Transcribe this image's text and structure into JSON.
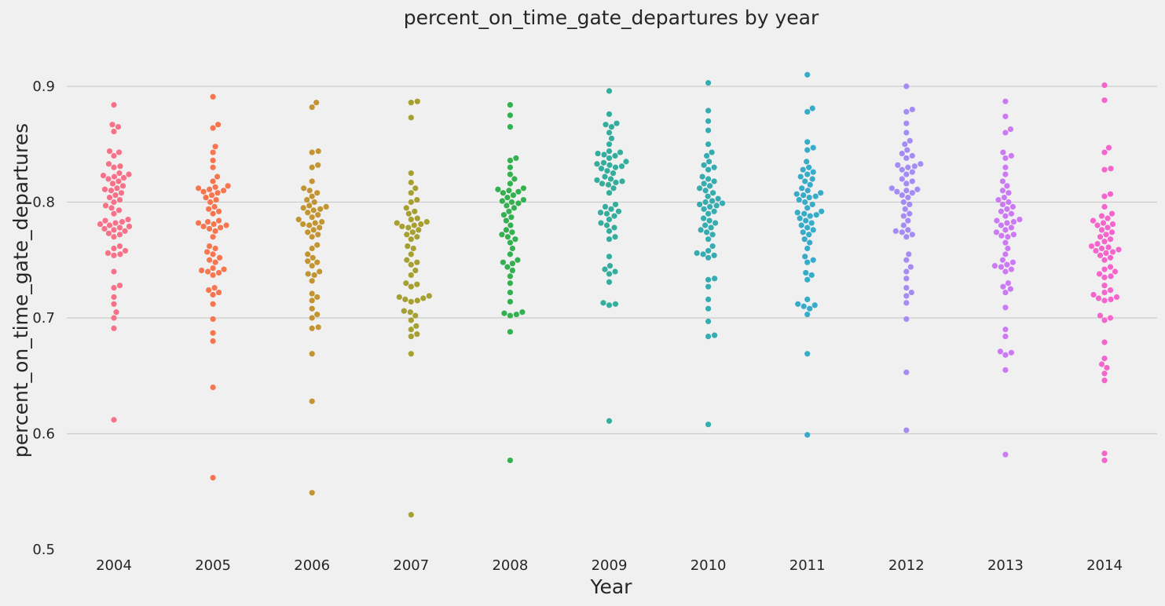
{
  "chart_data": {
    "type": "scatter",
    "subtype": "swarm",
    "title": "percent_on_time_gate_departures by year",
    "xlabel": "Year",
    "ylabel": "percent_on_time_gate_departures",
    "ylim": [
      0.5,
      0.94
    ],
    "yticks": [
      0.5,
      0.6,
      0.7,
      0.8,
      0.9
    ],
    "ytick_labels": [
      "0.5",
      "0.6",
      "0.7",
      "0.8",
      "0.9"
    ],
    "grid": true,
    "categories": [
      "2004",
      "2005",
      "2006",
      "2007",
      "2008",
      "2009",
      "2010",
      "2011",
      "2012",
      "2013",
      "2014"
    ],
    "colors": [
      "#f77189",
      "#f7754f",
      "#c39532",
      "#a6a031",
      "#33b04f",
      "#35ad9c",
      "#36abb0",
      "#37abc8",
      "#a48cf4",
      "#cc7af4",
      "#f565cc"
    ],
    "series": [
      {
        "category": "2004",
        "values": [
          0.612,
          0.691,
          0.7,
          0.705,
          0.712,
          0.718,
          0.726,
          0.728,
          0.74,
          0.754,
          0.755,
          0.756,
          0.758,
          0.76,
          0.762,
          0.77,
          0.772,
          0.773,
          0.775,
          0.776,
          0.777,
          0.778,
          0.779,
          0.78,
          0.781,
          0.782,
          0.783,
          0.784,
          0.785,
          0.79,
          0.793,
          0.795,
          0.797,
          0.8,
          0.802,
          0.804,
          0.806,
          0.808,
          0.81,
          0.811,
          0.812,
          0.814,
          0.816,
          0.818,
          0.82,
          0.821,
          0.822,
          0.823,
          0.824,
          0.825,
          0.83,
          0.831,
          0.833,
          0.84,
          0.843,
          0.844,
          0.861,
          0.865,
          0.867,
          0.884
        ]
      },
      {
        "category": "2005",
        "values": [
          0.562,
          0.64,
          0.68,
          0.687,
          0.699,
          0.712,
          0.72,
          0.722,
          0.724,
          0.726,
          0.737,
          0.739,
          0.74,
          0.741,
          0.742,
          0.743,
          0.748,
          0.75,
          0.752,
          0.755,
          0.757,
          0.76,
          0.762,
          0.77,
          0.775,
          0.777,
          0.778,
          0.779,
          0.78,
          0.781,
          0.782,
          0.783,
          0.784,
          0.79,
          0.792,
          0.794,
          0.796,
          0.8,
          0.802,
          0.804,
          0.806,
          0.808,
          0.809,
          0.81,
          0.811,
          0.812,
          0.813,
          0.814,
          0.818,
          0.822,
          0.83,
          0.836,
          0.843,
          0.848,
          0.864,
          0.867,
          0.891
        ]
      },
      {
        "category": "2006",
        "values": [
          0.549,
          0.628,
          0.669,
          0.691,
          0.692,
          0.7,
          0.703,
          0.708,
          0.715,
          0.718,
          0.721,
          0.732,
          0.737,
          0.738,
          0.74,
          0.745,
          0.748,
          0.749,
          0.752,
          0.755,
          0.76,
          0.763,
          0.77,
          0.772,
          0.774,
          0.776,
          0.778,
          0.78,
          0.781,
          0.782,
          0.783,
          0.785,
          0.787,
          0.789,
          0.791,
          0.793,
          0.794,
          0.795,
          0.796,
          0.797,
          0.8,
          0.802,
          0.805,
          0.808,
          0.81,
          0.812,
          0.818,
          0.83,
          0.832,
          0.843,
          0.844,
          0.882,
          0.886
        ]
      },
      {
        "category": "2007",
        "values": [
          0.53,
          0.669,
          0.684,
          0.686,
          0.69,
          0.693,
          0.698,
          0.702,
          0.705,
          0.706,
          0.714,
          0.715,
          0.716,
          0.717,
          0.718,
          0.719,
          0.727,
          0.729,
          0.73,
          0.737,
          0.741,
          0.746,
          0.748,
          0.75,
          0.755,
          0.76,
          0.762,
          0.768,
          0.77,
          0.772,
          0.774,
          0.776,
          0.778,
          0.779,
          0.78,
          0.781,
          0.782,
          0.783,
          0.785,
          0.786,
          0.79,
          0.792,
          0.795,
          0.8,
          0.802,
          0.808,
          0.812,
          0.817,
          0.825,
          0.873,
          0.886,
          0.887
        ]
      },
      {
        "category": "2008",
        "values": [
          0.577,
          0.688,
          0.702,
          0.703,
          0.704,
          0.705,
          0.714,
          0.722,
          0.73,
          0.736,
          0.741,
          0.744,
          0.747,
          0.748,
          0.75,
          0.755,
          0.76,
          0.765,
          0.768,
          0.77,
          0.772,
          0.774,
          0.776,
          0.78,
          0.784,
          0.787,
          0.789,
          0.792,
          0.795,
          0.797,
          0.799,
          0.8,
          0.801,
          0.802,
          0.804,
          0.806,
          0.808,
          0.809,
          0.81,
          0.811,
          0.812,
          0.816,
          0.82,
          0.824,
          0.83,
          0.836,
          0.838,
          0.865,
          0.875,
          0.884
        ]
      },
      {
        "category": "2009",
        "values": [
          0.611,
          0.711,
          0.712,
          0.713,
          0.731,
          0.738,
          0.74,
          0.742,
          0.745,
          0.753,
          0.768,
          0.77,
          0.775,
          0.778,
          0.78,
          0.782,
          0.785,
          0.788,
          0.79,
          0.791,
          0.792,
          0.794,
          0.796,
          0.798,
          0.808,
          0.812,
          0.815,
          0.816,
          0.817,
          0.818,
          0.819,
          0.82,
          0.822,
          0.825,
          0.827,
          0.829,
          0.83,
          0.831,
          0.832,
          0.833,
          0.834,
          0.835,
          0.838,
          0.84,
          0.841,
          0.842,
          0.843,
          0.844,
          0.85,
          0.855,
          0.86,
          0.865,
          0.867,
          0.868,
          0.876,
          0.896
        ]
      },
      {
        "category": "2010",
        "values": [
          0.608,
          0.684,
          0.685,
          0.697,
          0.708,
          0.716,
          0.727,
          0.733,
          0.734,
          0.752,
          0.754,
          0.755,
          0.756,
          0.758,
          0.762,
          0.768,
          0.772,
          0.774,
          0.776,
          0.778,
          0.78,
          0.782,
          0.784,
          0.786,
          0.79,
          0.792,
          0.794,
          0.796,
          0.797,
          0.798,
          0.799,
          0.8,
          0.801,
          0.803,
          0.805,
          0.808,
          0.81,
          0.812,
          0.814,
          0.816,
          0.818,
          0.82,
          0.822,
          0.828,
          0.83,
          0.832,
          0.835,
          0.84,
          0.843,
          0.85,
          0.862,
          0.87,
          0.879,
          0.903
        ]
      },
      {
        "category": "2011",
        "values": [
          0.599,
          0.669,
          0.703,
          0.708,
          0.71,
          0.711,
          0.712,
          0.716,
          0.733,
          0.737,
          0.739,
          0.748,
          0.75,
          0.753,
          0.76,
          0.765,
          0.768,
          0.772,
          0.774,
          0.776,
          0.778,
          0.78,
          0.782,
          0.784,
          0.786,
          0.788,
          0.789,
          0.79,
          0.791,
          0.792,
          0.795,
          0.798,
          0.8,
          0.802,
          0.804,
          0.805,
          0.806,
          0.807,
          0.808,
          0.81,
          0.812,
          0.815,
          0.818,
          0.82,
          0.822,
          0.824,
          0.826,
          0.828,
          0.83,
          0.835,
          0.845,
          0.847,
          0.852,
          0.878,
          0.881,
          0.91
        ]
      },
      {
        "category": "2012",
        "values": [
          0.603,
          0.653,
          0.699,
          0.713,
          0.719,
          0.722,
          0.726,
          0.734,
          0.74,
          0.744,
          0.75,
          0.755,
          0.77,
          0.772,
          0.774,
          0.775,
          0.776,
          0.78,
          0.784,
          0.788,
          0.79,
          0.794,
          0.798,
          0.8,
          0.804,
          0.806,
          0.808,
          0.809,
          0.81,
          0.811,
          0.812,
          0.816,
          0.818,
          0.82,
          0.824,
          0.826,
          0.828,
          0.83,
          0.831,
          0.832,
          0.833,
          0.838,
          0.84,
          0.842,
          0.845,
          0.85,
          0.853,
          0.86,
          0.868,
          0.878,
          0.88,
          0.9
        ]
      },
      {
        "category": "2013",
        "values": [
          0.582,
          0.655,
          0.668,
          0.67,
          0.671,
          0.684,
          0.69,
          0.709,
          0.722,
          0.725,
          0.727,
          0.73,
          0.74,
          0.742,
          0.744,
          0.745,
          0.746,
          0.748,
          0.75,
          0.755,
          0.76,
          0.765,
          0.77,
          0.771,
          0.772,
          0.774,
          0.776,
          0.778,
          0.78,
          0.782,
          0.783,
          0.784,
          0.785,
          0.788,
          0.79,
          0.792,
          0.794,
          0.796,
          0.798,
          0.8,
          0.802,
          0.804,
          0.808,
          0.81,
          0.814,
          0.818,
          0.824,
          0.83,
          0.838,
          0.84,
          0.843,
          0.86,
          0.863,
          0.874,
          0.887
        ]
      },
      {
        "category": "2014",
        "values": [
          0.577,
          0.583,
          0.646,
          0.652,
          0.657,
          0.66,
          0.665,
          0.679,
          0.698,
          0.7,
          0.702,
          0.715,
          0.716,
          0.717,
          0.718,
          0.72,
          0.722,
          0.724,
          0.728,
          0.735,
          0.736,
          0.738,
          0.74,
          0.742,
          0.744,
          0.75,
          0.752,
          0.754,
          0.756,
          0.757,
          0.758,
          0.759,
          0.76,
          0.761,
          0.762,
          0.764,
          0.766,
          0.768,
          0.77,
          0.772,
          0.774,
          0.776,
          0.778,
          0.78,
          0.781,
          0.782,
          0.784,
          0.786,
          0.788,
          0.79,
          0.796,
          0.805,
          0.807,
          0.828,
          0.829,
          0.843,
          0.847,
          0.888,
          0.901
        ]
      }
    ]
  }
}
